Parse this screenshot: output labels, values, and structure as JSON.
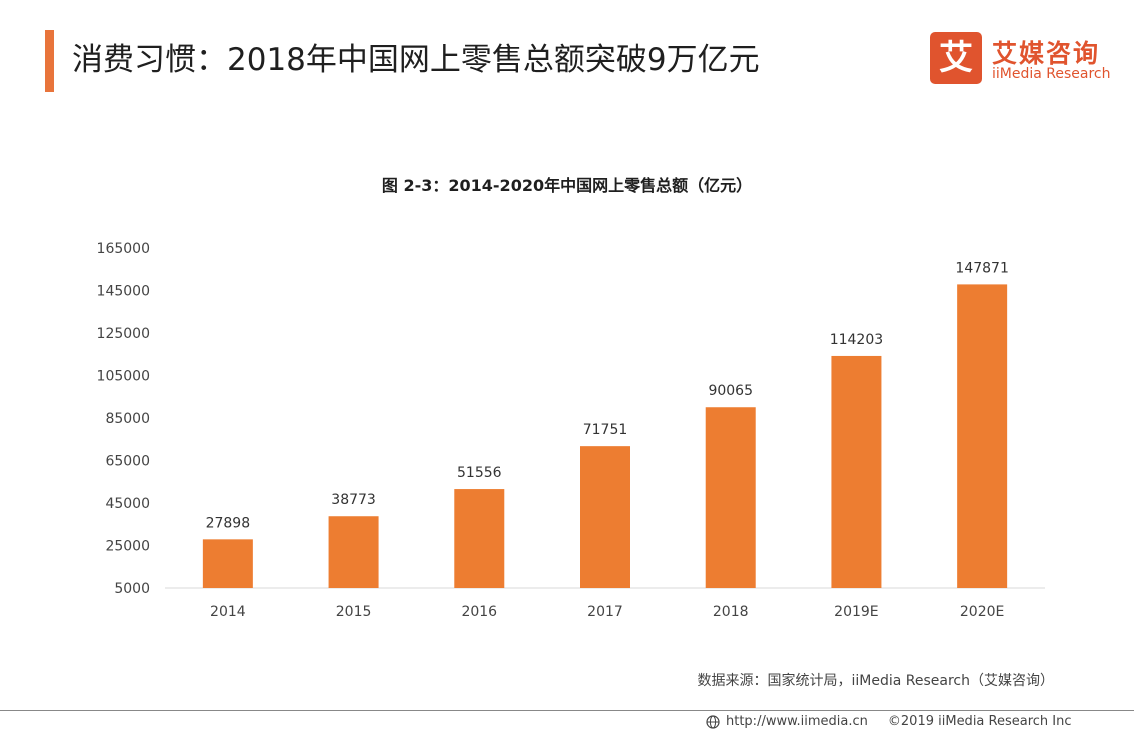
{
  "header": {
    "title": "消费习惯：2018年中国网上零售总额突破9万亿元"
  },
  "logo": {
    "mark": "艾",
    "name_cn": "艾媒咨询",
    "name_en": "iiMedia Research"
  },
  "colors": {
    "accent": "#e8743b",
    "bar": "#ed7d31",
    "logo": "#e0542e"
  },
  "chart_data": {
    "type": "bar",
    "title": "图 2-3：2014-2020年中国网上零售总额（亿元）",
    "categories": [
      "2014",
      "2015",
      "2016",
      "2017",
      "2018",
      "2019E",
      "2020E"
    ],
    "values": [
      27898,
      38773,
      51556,
      71751,
      90065,
      114203,
      147871
    ],
    "yticks": [
      5000,
      25000,
      45000,
      65000,
      85000,
      105000,
      125000,
      145000,
      165000
    ],
    "ylim": [
      5000,
      165000
    ],
    "grid": false,
    "data_labels": true
  },
  "source": "数据来源：国家统计局，iiMedia Research（艾媒咨询）",
  "footer": {
    "url": "http://www.iimedia.cn",
    "copyright": "©2019  iiMedia Research  Inc"
  }
}
